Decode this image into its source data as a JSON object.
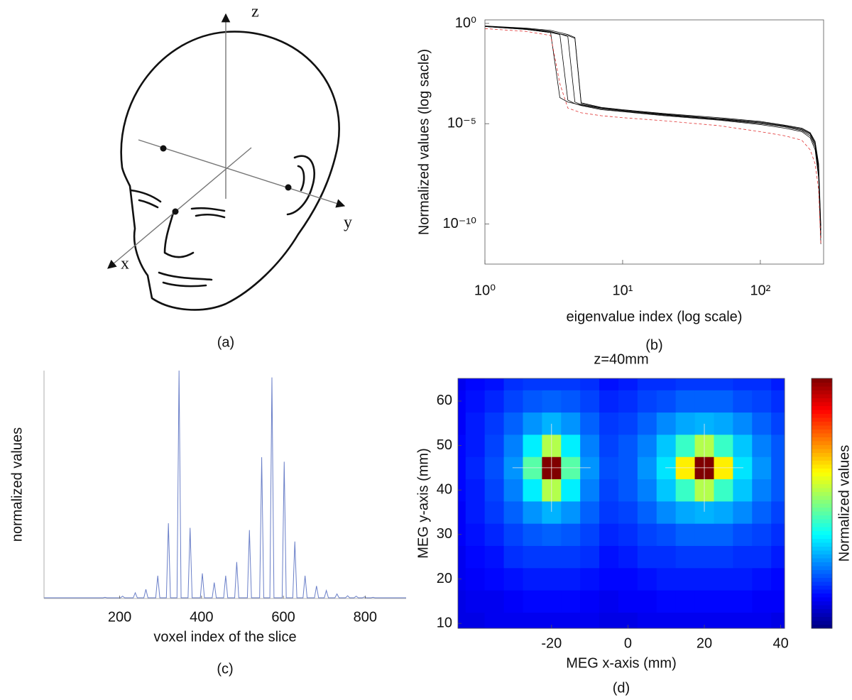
{
  "diagram": {
    "axes": [
      "z",
      "y",
      "x"
    ],
    "caption": "(a)"
  },
  "chart_data": [
    {
      "type": "line",
      "caption": "(b)",
      "xlabel": "eigenvalue index (log scale)",
      "ylabel": "Normalized values (log sacle)",
      "xscale": "log",
      "yscale": "log",
      "xlim": [
        1,
        288
      ],
      "ylim": [
        1e-12,
        1.5
      ],
      "xticks": [
        {
          "value": 1,
          "label": "10⁰"
        },
        {
          "value": 10,
          "label": "10¹"
        },
        {
          "value": 100,
          "label": "10²"
        }
      ],
      "yticks": [
        {
          "value": 1,
          "label": "10⁰"
        },
        {
          "value": 1e-05,
          "label": "10⁻⁵"
        },
        {
          "value": 1e-10,
          "label": "10⁻¹⁰"
        }
      ],
      "x": [
        1,
        2,
        3,
        3.5,
        4,
        4.5,
        5,
        7,
        10,
        20,
        50,
        100,
        150,
        200,
        230,
        250,
        265,
        275
      ],
      "series": [
        {
          "color": "#000000",
          "values": [
            0.7,
            0.5,
            0.35,
            0.0002,
            0.00012,
            0.0001,
            8e-05,
            5e-05,
            4e-05,
            2.5e-05,
            1.5e-05,
            9e-06,
            6e-06,
            4e-06,
            2e-06,
            5e-07,
            2e-08,
            1e-11
          ]
        },
        {
          "color": "#000000",
          "values": [
            0.7,
            0.5,
            0.35,
            0.28,
            0.00015,
            0.0001,
            8.5e-05,
            5.5e-05,
            4.2e-05,
            2.7e-05,
            1.6e-05,
            1e-05,
            7e-06,
            4.5e-06,
            2.5e-06,
            7e-07,
            3e-08,
            2e-11
          ]
        },
        {
          "color": "#000000",
          "values": [
            0.7,
            0.52,
            0.38,
            0.3,
            0.22,
            0.00012,
            9e-05,
            6e-05,
            4.5e-05,
            2.9e-05,
            1.7e-05,
            1.1e-05,
            7.5e-06,
            5e-06,
            3e-06,
            9e-07,
            5e-08,
            3e-11
          ]
        },
        {
          "color": "#000000",
          "values": [
            0.72,
            0.55,
            0.4,
            0.3,
            0.25,
            0.18,
            0.0001,
            6.2e-05,
            4.7e-05,
            3e-05,
            1.8e-05,
            1.2e-05,
            8e-06,
            5.5e-06,
            3.3e-06,
            1.1e-06,
            7e-08,
            5e-11
          ]
        },
        {
          "color": "#000000",
          "values": [
            0.75,
            0.58,
            0.45,
            0.35,
            0.28,
            0.2,
            0.00011,
            6.5e-05,
            5e-05,
            3.2e-05,
            2e-05,
            1.3e-05,
            8.5e-06,
            6e-06,
            3.6e-06,
            1.3e-06,
            1e-07,
            8e-11
          ]
        },
        {
          "color": "#e03030",
          "dash": "4 3",
          "values": [
            0.55,
            0.4,
            0.25,
            0.001,
            6e-05,
            4.5e-05,
            3.5e-05,
            2.5e-05,
            2e-05,
            1.4e-05,
            8e-06,
            4e-06,
            2.5e-06,
            1.5e-06,
            5e-07,
            1e-07,
            5e-09,
            1e-11
          ]
        }
      ]
    },
    {
      "type": "line",
      "caption": "(c)",
      "xlabel": "voxel index of the slice",
      "ylabel": "normalized values",
      "xlim": [
        15,
        900
      ],
      "ylim": [
        0,
        1
      ],
      "xticks": [
        200,
        400,
        600,
        800
      ],
      "color": "#6a7fc8",
      "x": [
        15,
        159,
        164,
        169,
        202,
        207,
        212,
        233,
        238,
        243,
        259,
        264,
        269,
        288,
        293,
        298,
        314,
        319,
        324,
        340,
        345,
        350,
        367,
        372,
        377,
        397,
        402,
        407,
        426,
        431,
        436,
        454,
        459,
        464,
        481,
        486,
        491,
        512,
        517,
        522,
        542,
        547,
        552,
        567,
        572,
        577,
        597,
        602,
        607,
        623,
        628,
        633,
        648,
        653,
        658,
        676,
        681,
        686,
        700,
        705,
        710,
        726,
        731,
        736,
        752,
        757,
        762,
        773,
        778,
        783,
        793,
        798,
        803,
        814,
        819,
        824,
        900
      ],
      "values": [
        0.003,
        0.003,
        0.005,
        0.003,
        0.003,
        0.01,
        0.003,
        0.003,
        0.025,
        0.003,
        0.003,
        0.04,
        0.003,
        0.003,
        0.1,
        0.003,
        0.003,
        0.33,
        0.003,
        0.003,
        1.0,
        0.003,
        0.003,
        0.31,
        0.003,
        0.003,
        0.11,
        0.003,
        0.003,
        0.07,
        0.003,
        0.003,
        0.1,
        0.003,
        0.003,
        0.16,
        0.003,
        0.003,
        0.3,
        0.003,
        0.003,
        0.62,
        0.003,
        0.003,
        0.97,
        0.003,
        0.003,
        0.6,
        0.003,
        0.003,
        0.25,
        0.003,
        0.003,
        0.1,
        0.003,
        0.003,
        0.055,
        0.003,
        0.003,
        0.035,
        0.003,
        0.003,
        0.02,
        0.003,
        0.003,
        0.012,
        0.003,
        0.003,
        0.01,
        0.003,
        0.003,
        0.007,
        0.003,
        0.003,
        0.005,
        0.003,
        0.003
      ]
    },
    {
      "type": "heatmap",
      "caption": "(d)",
      "title": "z=40mm",
      "xlabel": "MEG x-axis (mm)",
      "ylabel": "MEG y-axis (mm)",
      "colorbar_label": "Normalized values",
      "colormap": "jet",
      "clim": [
        0,
        1
      ],
      "xlim": [
        -44.5,
        41
      ],
      "ylim": [
        8.9,
        65.1
      ],
      "xticks": [
        -20,
        0,
        20,
        40
      ],
      "yticks": [
        10,
        20,
        30,
        40,
        50,
        60
      ],
      "x": [
        -45,
        -40,
        -35,
        -30,
        -25,
        -20,
        -15,
        -10,
        -5,
        0,
        5,
        10,
        15,
        20,
        25,
        30,
        35,
        40
      ],
      "y": [
        10,
        15,
        20,
        25,
        30,
        35,
        40,
        45,
        50,
        55,
        60,
        65
      ],
      "values": [
        [
          0.1,
          0.1,
          0.11,
          0.11,
          0.11,
          0.11,
          0.11,
          0.11,
          0.1,
          0.1,
          0.11,
          0.11,
          0.11,
          0.11,
          0.11,
          0.11,
          0.11,
          0.1
        ],
        [
          0.1,
          0.11,
          0.11,
          0.12,
          0.13,
          0.13,
          0.13,
          0.12,
          0.11,
          0.12,
          0.12,
          0.13,
          0.13,
          0.13,
          0.13,
          0.13,
          0.12,
          0.12
        ],
        [
          0.11,
          0.12,
          0.13,
          0.14,
          0.15,
          0.15,
          0.15,
          0.14,
          0.13,
          0.13,
          0.14,
          0.15,
          0.15,
          0.15,
          0.15,
          0.15,
          0.14,
          0.13
        ],
        [
          0.11,
          0.13,
          0.14,
          0.17,
          0.18,
          0.18,
          0.18,
          0.17,
          0.14,
          0.15,
          0.17,
          0.17,
          0.18,
          0.18,
          0.18,
          0.17,
          0.17,
          0.15
        ],
        [
          0.12,
          0.14,
          0.16,
          0.19,
          0.21,
          0.22,
          0.21,
          0.19,
          0.16,
          0.17,
          0.19,
          0.2,
          0.22,
          0.22,
          0.22,
          0.2,
          0.19,
          0.17
        ],
        [
          0.12,
          0.15,
          0.18,
          0.22,
          0.27,
          0.3,
          0.27,
          0.22,
          0.18,
          0.19,
          0.22,
          0.26,
          0.29,
          0.3,
          0.29,
          0.26,
          0.22,
          0.19
        ],
        [
          0.13,
          0.15,
          0.19,
          0.25,
          0.36,
          0.55,
          0.36,
          0.25,
          0.19,
          0.21,
          0.25,
          0.32,
          0.43,
          0.55,
          0.43,
          0.32,
          0.25,
          0.21
        ],
        [
          0.13,
          0.16,
          0.2,
          0.27,
          0.46,
          1.0,
          0.46,
          0.27,
          0.2,
          0.21,
          0.27,
          0.35,
          0.64,
          1.0,
          0.64,
          0.35,
          0.27,
          0.21
        ],
        [
          0.13,
          0.15,
          0.19,
          0.25,
          0.36,
          0.55,
          0.36,
          0.25,
          0.19,
          0.21,
          0.25,
          0.32,
          0.43,
          0.55,
          0.43,
          0.32,
          0.25,
          0.21
        ],
        [
          0.12,
          0.15,
          0.18,
          0.22,
          0.27,
          0.3,
          0.27,
          0.22,
          0.18,
          0.19,
          0.22,
          0.26,
          0.29,
          0.3,
          0.29,
          0.26,
          0.22,
          0.19
        ],
        [
          0.12,
          0.14,
          0.16,
          0.19,
          0.21,
          0.22,
          0.21,
          0.19,
          0.16,
          0.17,
          0.19,
          0.2,
          0.22,
          0.22,
          0.22,
          0.2,
          0.19,
          0.17
        ],
        [
          0.11,
          0.13,
          0.14,
          0.17,
          0.18,
          0.18,
          0.18,
          0.17,
          0.14,
          0.15,
          0.17,
          0.17,
          0.18,
          0.18,
          0.18,
          0.17,
          0.17,
          0.15
        ]
      ],
      "markers": [
        {
          "x": -20,
          "y": 45
        },
        {
          "x": 20,
          "y": 45
        }
      ]
    }
  ]
}
